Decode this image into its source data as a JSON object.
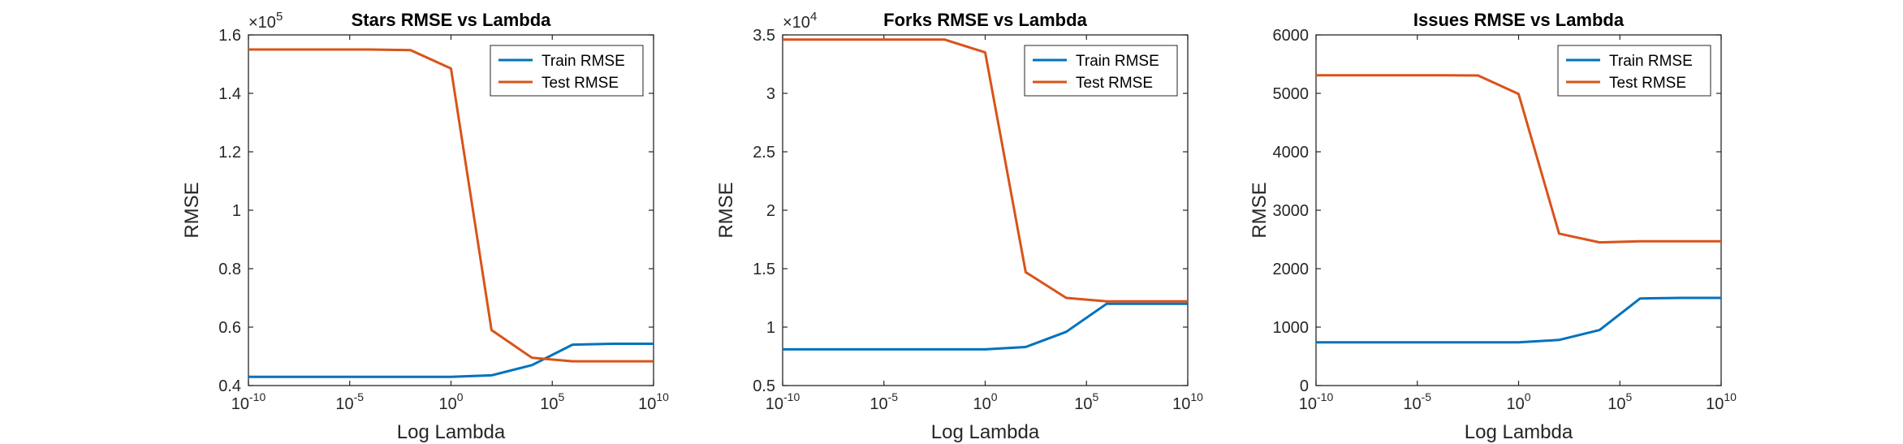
{
  "figure": {
    "colors": {
      "train": "#0072BD",
      "test": "#D95319",
      "axis": "#262626",
      "background": "#ffffff"
    }
  },
  "chart_data": [
    {
      "type": "line",
      "title": "Stars RMSE vs Lambda",
      "xlabel": "Log Lambda",
      "ylabel": "RMSE",
      "xscale": "log",
      "xlim": [
        1e-10,
        10000000000.0
      ],
      "xticks": [
        1e-10,
        1e-05,
        1,
        100000.0,
        10000000000.0
      ],
      "xtick_labels": [
        {
          "base": "10",
          "exp": "-10"
        },
        {
          "base": "10",
          "exp": "-5"
        },
        {
          "base": "10",
          "exp": "0"
        },
        {
          "base": "10",
          "exp": "5"
        },
        {
          "base": "10",
          "exp": "10"
        }
      ],
      "ylim": [
        0.4,
        1.6
      ],
      "yticks": [
        0.4,
        0.6,
        0.8,
        1,
        1.2,
        1.4,
        1.6
      ],
      "ytick_labels": [
        "0.4",
        "0.6",
        "0.8",
        "1",
        "1.2",
        "1.4",
        "1.6"
      ],
      "y_exponent": {
        "base": "×10",
        "exp": "5"
      },
      "grid": false,
      "legend": "top-right",
      "x": [
        1e-10,
        1e-08,
        1e-06,
        0.0001,
        0.01,
        1,
        100,
        10000.0,
        1000000.0,
        100000000.0,
        10000000000.0
      ],
      "series": [
        {
          "name": "Train RMSE",
          "color": "#0072BD",
          "values": [
            0.43,
            0.43,
            0.43,
            0.43,
            0.43,
            0.43,
            0.435,
            0.47,
            0.54,
            0.543,
            0.543
          ]
        },
        {
          "name": "Test RMSE",
          "color": "#D95319",
          "values": [
            1.55,
            1.55,
            1.55,
            1.55,
            1.548,
            1.485,
            0.59,
            0.495,
            0.483,
            0.483,
            0.483
          ]
        }
      ]
    },
    {
      "type": "line",
      "title": "Forks RMSE vs Lambda",
      "xlabel": "Log Lambda",
      "ylabel": "RMSE",
      "xscale": "log",
      "xlim": [
        1e-10,
        10000000000.0
      ],
      "xticks": [
        1e-10,
        1e-05,
        1,
        100000.0,
        10000000000.0
      ],
      "xtick_labels": [
        {
          "base": "10",
          "exp": "-10"
        },
        {
          "base": "10",
          "exp": "-5"
        },
        {
          "base": "10",
          "exp": "0"
        },
        {
          "base": "10",
          "exp": "5"
        },
        {
          "base": "10",
          "exp": "10"
        }
      ],
      "ylim": [
        0.5,
        3.5
      ],
      "yticks": [
        0.5,
        1,
        1.5,
        2,
        2.5,
        3,
        3.5
      ],
      "ytick_labels": [
        "0.5",
        "1",
        "1.5",
        "2",
        "2.5",
        "3",
        "3.5"
      ],
      "y_exponent": {
        "base": "×10",
        "exp": "4"
      },
      "grid": false,
      "legend": "top-right",
      "x": [
        1e-10,
        1e-08,
        1e-06,
        0.0001,
        0.01,
        1,
        100,
        10000.0,
        1000000.0,
        100000000.0,
        10000000000.0
      ],
      "series": [
        {
          "name": "Train RMSE",
          "color": "#0072BD",
          "values": [
            0.81,
            0.81,
            0.81,
            0.81,
            0.81,
            0.81,
            0.83,
            0.96,
            1.2,
            1.2,
            1.2
          ]
        },
        {
          "name": "Test RMSE",
          "color": "#D95319",
          "values": [
            3.46,
            3.46,
            3.46,
            3.46,
            3.46,
            3.35,
            1.47,
            1.25,
            1.22,
            1.22,
            1.22
          ]
        }
      ]
    },
    {
      "type": "line",
      "title": "Issues RMSE vs Lambda",
      "xlabel": "Log Lambda",
      "ylabel": "RMSE",
      "xscale": "log",
      "xlim": [
        1e-10,
        10000000000.0
      ],
      "xticks": [
        1e-10,
        1e-05,
        1,
        100000.0,
        10000000000.0
      ],
      "xtick_labels": [
        {
          "base": "10",
          "exp": "-10"
        },
        {
          "base": "10",
          "exp": "-5"
        },
        {
          "base": "10",
          "exp": "0"
        },
        {
          "base": "10",
          "exp": "5"
        },
        {
          "base": "10",
          "exp": "10"
        }
      ],
      "ylim": [
        0,
        6000
      ],
      "yticks": [
        0,
        1000,
        2000,
        3000,
        4000,
        5000,
        6000
      ],
      "ytick_labels": [
        "0",
        "1000",
        "2000",
        "3000",
        "4000",
        "5000",
        "6000"
      ],
      "y_exponent": null,
      "grid": false,
      "legend": "top-right",
      "x": [
        1e-10,
        1e-08,
        1e-06,
        0.0001,
        0.01,
        1,
        100,
        10000.0,
        1000000.0,
        100000000.0,
        10000000000.0
      ],
      "series": [
        {
          "name": "Train RMSE",
          "color": "#0072BD",
          "values": [
            740,
            740,
            740,
            740,
            740,
            740,
            780,
            950,
            1490,
            1500,
            1500
          ]
        },
        {
          "name": "Test RMSE",
          "color": "#D95319",
          "values": [
            5310,
            5310,
            5310,
            5310,
            5305,
            4990,
            2600,
            2450,
            2470,
            2470,
            2470
          ]
        }
      ]
    }
  ]
}
